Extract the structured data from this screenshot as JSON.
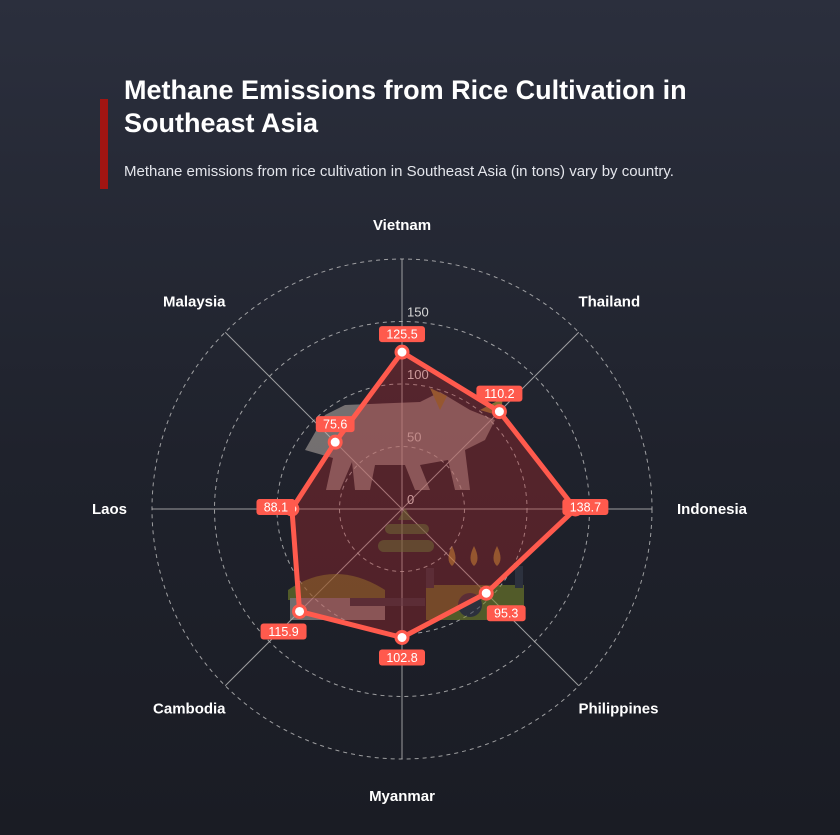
{
  "header": {
    "title": "Methane Emissions from Rice Cultivation in Southeast Asia",
    "subtitle": "Methane emissions from rice cultivation in Southeast Asia (in tons) vary by country."
  },
  "chart_data": {
    "type": "radar",
    "categories": [
      "Vietnam",
      "Thailand",
      "Indonesia",
      "Philippines",
      "Myanmar",
      "Cambodia",
      "Laos",
      "Malaysia"
    ],
    "values": [
      125.5,
      110.2,
      138.7,
      95.3,
      102.8,
      115.9,
      88.1,
      75.6
    ],
    "radial_ticks": [
      0,
      50,
      100,
      150
    ],
    "rlim": [
      0,
      200
    ],
    "grid": true,
    "legend": "none",
    "colors": {
      "line": "#ff5a4d",
      "fill": "#b8282a",
      "label_box": "#ff5a4d",
      "point_fill": "#ffffff",
      "grid": "#c8c8c8",
      "axis": "#bdbdbd"
    }
  }
}
